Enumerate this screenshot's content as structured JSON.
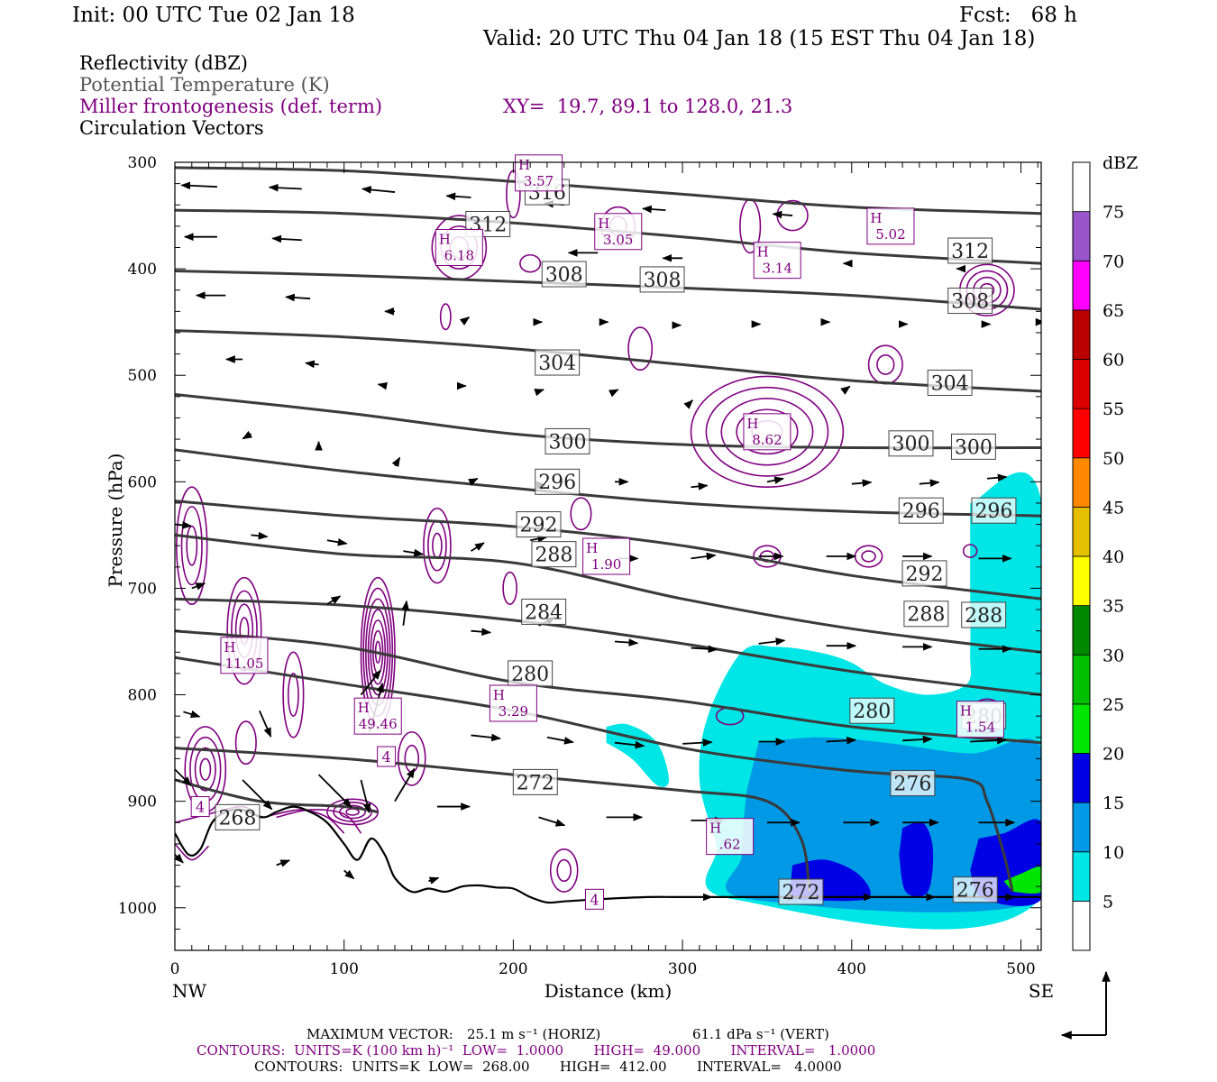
{
  "header": {
    "init": "Init: 00 UTC Tue 02 Jan 18",
    "fcst": "Fcst:   68 h",
    "valid": "Valid: 20 UTC Thu 04 Jan 18 (15 EST Thu 04 Jan 18)"
  },
  "legend_lines": {
    "reflectivity": "Reflectivity (dBZ)",
    "theta": "Potential Temperature (K)",
    "frontogenesis": "Miller frontogenesis (def. term)",
    "xy": "XY=  19.7, 89.1 to 128.0, 21.3",
    "vectors": "Circulation Vectors"
  },
  "colors": {
    "theta": "#3a3a3a",
    "frontogenesis": "#800080",
    "vectors": "#000000"
  },
  "footer": {
    "max_vector_label": "MAXIMUM VECTOR:",
    "max_horiz": "25.1 m s⁻¹ (HORIZ)",
    "max_vert": "61.1 dPa s⁻¹ (VERT)",
    "contours1": "CONTOURS:  UNITS=K (100 km h)⁻¹  LOW=  1.0000       HIGH=  49.000       INTERVAL=   1.0000",
    "contours2": "CONTOURS:  UNITS=K  LOW=  268.00       HIGH=  412.00       INTERVAL=   4.0000"
  },
  "chart_data": {
    "type": "cross-section",
    "xlabel": "Distance (km)",
    "ylabel": "Pressure (hPa)",
    "xlim": [
      0,
      512
    ],
    "ylim": [
      1040,
      300
    ],
    "x_ticks": [
      0,
      100,
      200,
      300,
      400,
      500
    ],
    "y_ticks": [
      300,
      400,
      500,
      600,
      700,
      800,
      900,
      1000
    ],
    "x_end_labels": [
      "NW",
      "SE"
    ],
    "colorbar": {
      "unit": "dBZ",
      "levels": [
        5,
        10,
        15,
        20,
        25,
        30,
        35,
        40,
        45,
        50,
        55,
        60,
        65,
        70,
        75
      ],
      "colors": [
        "#ffffff",
        "#00e5e5",
        "#0099e5",
        "#0000e5",
        "#00e600",
        "#00c000",
        "#008800",
        "#ffff00",
        "#e5c000",
        "#ff8800",
        "#ff0000",
        "#dd0000",
        "#bb0000",
        "#ff00ff",
        "#9955cc",
        "#ffffff"
      ]
    },
    "terrain": [
      [
        0,
        930
      ],
      [
        8,
        950
      ],
      [
        15,
        945
      ],
      [
        22,
        920
      ],
      [
        30,
        910
      ],
      [
        40,
        908
      ],
      [
        52,
        915
      ],
      [
        60,
        910
      ],
      [
        70,
        905
      ],
      [
        80,
        910
      ],
      [
        90,
        920
      ],
      [
        100,
        940
      ],
      [
        108,
        955
      ],
      [
        116,
        935
      ],
      [
        124,
        950
      ],
      [
        130,
        972
      ],
      [
        140,
        985
      ],
      [
        150,
        982
      ],
      [
        160,
        985
      ],
      [
        170,
        980
      ],
      [
        180,
        979
      ],
      [
        190,
        981
      ],
      [
        200,
        982
      ],
      [
        210,
        990
      ],
      [
        220,
        995
      ],
      [
        230,
        994
      ],
      [
        250,
        992
      ],
      [
        280,
        990
      ],
      [
        300,
        990
      ],
      [
        350,
        990
      ],
      [
        400,
        990
      ],
      [
        450,
        990
      ],
      [
        500,
        990
      ],
      [
        512,
        990
      ]
    ],
    "theta_contours": [
      {
        "value": 316,
        "points": [
          [
            0,
            305
          ],
          [
            100,
            308
          ],
          [
            200,
            318
          ],
          [
            300,
            330
          ],
          [
            400,
            342
          ],
          [
            512,
            348
          ]
        ],
        "labels": [
          [
            220,
            328
          ]
        ]
      },
      {
        "value": 312,
        "points": [
          [
            0,
            345
          ],
          [
            100,
            348
          ],
          [
            200,
            357
          ],
          [
            300,
            370
          ],
          [
            400,
            385
          ],
          [
            512,
            395
          ]
        ],
        "labels": [
          [
            185,
            358
          ],
          [
            470,
            383
          ]
        ]
      },
      {
        "value": 308,
        "points": [
          [
            0,
            402
          ],
          [
            100,
            406
          ],
          [
            200,
            412
          ],
          [
            300,
            418
          ],
          [
            400,
            425
          ],
          [
            512,
            438
          ]
        ],
        "labels": [
          [
            230,
            405
          ],
          [
            288,
            410
          ],
          [
            470,
            430
          ]
        ]
      },
      {
        "value": 304,
        "points": [
          [
            0,
            458
          ],
          [
            100,
            464
          ],
          [
            200,
            475
          ],
          [
            300,
            490
          ],
          [
            400,
            505
          ],
          [
            512,
            515
          ]
        ],
        "labels": [
          [
            226,
            488
          ],
          [
            458,
            507
          ]
        ]
      },
      {
        "value": 300,
        "points": [
          [
            0,
            518
          ],
          [
            100,
            535
          ],
          [
            200,
            555
          ],
          [
            300,
            565
          ],
          [
            400,
            568
          ],
          [
            512,
            568
          ]
        ],
        "labels": [
          [
            232,
            562
          ],
          [
            435,
            564
          ],
          [
            472,
            567
          ]
        ]
      },
      {
        "value": 296,
        "points": [
          [
            0,
            570
          ],
          [
            100,
            590
          ],
          [
            200,
            606
          ],
          [
            300,
            620
          ],
          [
            400,
            628
          ],
          [
            512,
            632
          ]
        ],
        "labels": [
          [
            226,
            600
          ],
          [
            441,
            627
          ],
          [
            484,
            627
          ]
        ]
      },
      {
        "value": 292,
        "points": [
          [
            0,
            618
          ],
          [
            100,
            632
          ],
          [
            200,
            642
          ],
          [
            300,
            660
          ],
          [
            400,
            688
          ],
          [
            512,
            710
          ]
        ],
        "labels": [
          [
            215,
            640
          ],
          [
            443,
            686
          ]
        ]
      },
      {
        "value": 288,
        "points": [
          [
            0,
            650
          ],
          [
            100,
            668
          ],
          [
            200,
            676
          ],
          [
            300,
            710
          ],
          [
            400,
            738
          ],
          [
            512,
            760
          ]
        ],
        "labels": [
          [
            224,
            668
          ],
          [
            444,
            724
          ],
          [
            478,
            725
          ]
        ]
      },
      {
        "value": 284,
        "points": [
          [
            0,
            710
          ],
          [
            100,
            716
          ],
          [
            200,
            730
          ],
          [
            300,
            752
          ],
          [
            400,
            778
          ],
          [
            512,
            800
          ]
        ],
        "labels": [
          [
            218,
            722
          ]
        ]
      },
      {
        "value": 280,
        "points": [
          [
            0,
            740
          ],
          [
            100,
            755
          ],
          [
            200,
            788
          ],
          [
            300,
            806
          ],
          [
            400,
            830
          ],
          [
            512,
            845
          ]
        ],
        "labels": [
          [
            210,
            780
          ],
          [
            412,
            815
          ],
          [
            478,
            820
          ]
        ]
      },
      {
        "value": 276,
        "points": [
          [
            0,
            765
          ],
          [
            100,
            790
          ],
          [
            200,
            815
          ],
          [
            300,
            850
          ],
          [
            380,
            868
          ],
          [
            420,
            874
          ],
          [
            470,
            880
          ],
          [
            480,
            900
          ],
          [
            490,
            950
          ],
          [
            495,
            985
          ]
        ],
        "labels": [
          [
            436,
            883
          ],
          [
            473,
            983
          ]
        ]
      },
      {
        "value": 272,
        "points": [
          [
            0,
            850
          ],
          [
            100,
            860
          ],
          [
            200,
            875
          ],
          [
            300,
            890
          ],
          [
            350,
            900
          ],
          [
            370,
            935
          ],
          [
            375,
            985
          ]
        ],
        "labels": [
          [
            213,
            882
          ],
          [
            370,
            985
          ]
        ]
      },
      {
        "value": 268,
        "points": [
          [
            0,
            880
          ],
          [
            50,
            900
          ],
          [
            100,
            905
          ],
          [
            120,
            910
          ]
        ],
        "labels": [
          [
            37,
            915
          ]
        ]
      }
    ],
    "frontogenesis_maxima": [
      {
        "label": "H",
        "value": "3.57",
        "x": 215,
        "y": 310
      },
      {
        "label": "H",
        "value": "3.05",
        "x": 262,
        "y": 365
      },
      {
        "label": "H",
        "value": "6.18",
        "x": 168,
        "y": 380
      },
      {
        "label": "H",
        "value": "3.14",
        "x": 356,
        "y": 392
      },
      {
        "label": "H",
        "value": "5.02",
        "x": 423,
        "y": 360
      },
      {
        "label": "H",
        "value": "8.62",
        "x": 350,
        "y": 553
      },
      {
        "label": "H",
        "value": "1.90",
        "x": 255,
        "y": 670
      },
      {
        "label": "H",
        "value": "11.05",
        "x": 41,
        "y": 763
      },
      {
        "label": "H",
        "value": "49.46",
        "x": 120,
        "y": 820
      },
      {
        "label": "H",
        "value": "3.29",
        "x": 200,
        "y": 808
      },
      {
        "label": "H",
        "value": ".62",
        "x": 328,
        "y": 933
      },
      {
        "label": "H",
        "value": "1.54",
        "x": 476,
        "y": 823
      }
    ],
    "frontogenesis_lows": [
      {
        "value": "4",
        "x": 125,
        "y": 858
      },
      {
        "value": "4",
        "x": 15,
        "y": 905
      },
      {
        "value": "4",
        "x": 248,
        "y": 992
      }
    ]
  }
}
